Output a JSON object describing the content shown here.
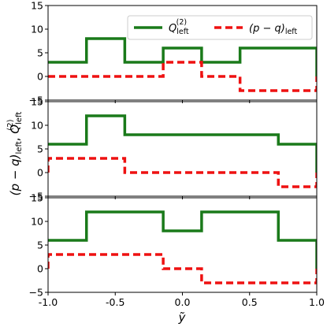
{
  "chart_data": {
    "type": "line",
    "xlabel": "ỹ",
    "ylabel_parts": [
      "(p − q)",
      "left",
      ", ",
      "Q",
      "left",
      "(2)"
    ],
    "xlim": [
      -1.0,
      1.0
    ],
    "xticks": [
      -1.0,
      -0.5,
      0.0,
      0.5,
      1.0
    ],
    "xtick_labels": [
      "-1.0",
      "-0.5",
      "0.0",
      "0.5",
      "1.0"
    ],
    "legend": {
      "placement": "top-right",
      "entries": [
        {
          "label_main": "Q",
          "label_sub": "left",
          "label_sup": "(2)",
          "color": "#1a7a1a",
          "style": "solid"
        },
        {
          "label_main": "(p − q)",
          "label_sub": "left",
          "label_sup": "",
          "color": "#ee1111",
          "style": "dashed"
        }
      ]
    },
    "panels": [
      {
        "ylim": [
          -5,
          15
        ],
        "yticks": [
          -5,
          0,
          5,
          10,
          15
        ],
        "ytick_labels": [
          "−5",
          "0",
          "5",
          "10",
          "15"
        ],
        "series": [
          {
            "color": "#1a7a1a",
            "style": "solid",
            "x": [
              -1.0,
              -0.714,
              -0.714,
              -0.429,
              -0.429,
              -0.143,
              -0.143,
              0.143,
              0.143,
              0.429,
              0.429,
              1.0,
              1.0
            ],
            "y": [
              3,
              3,
              8,
              8,
              3,
              3,
              6,
              6,
              3,
              3,
              6,
              6,
              0
            ]
          },
          {
            "color": "#ee1111",
            "style": "dashed",
            "x": [
              -1.0,
              -0.143,
              -0.143,
              0.143,
              0.143,
              0.429,
              0.429,
              1.0,
              1.0
            ],
            "y": [
              0,
              0,
              3,
              3,
              0,
              0,
              -3,
              -3,
              0
            ]
          }
        ]
      },
      {
        "ylim": [
          -5,
          15
        ],
        "yticks": [
          -5,
          0,
          5,
          10,
          15
        ],
        "ytick_labels": [
          "−5",
          "0",
          "5",
          "10",
          "15"
        ],
        "series": [
          {
            "color": "#1a7a1a",
            "style": "solid",
            "x": [
              -1.0,
              -0.714,
              -0.714,
              -0.429,
              -0.429,
              0.714,
              0.714,
              1.0,
              1.0
            ],
            "y": [
              6,
              6,
              12,
              12,
              8,
              8,
              6,
              6,
              0
            ]
          },
          {
            "color": "#ee1111",
            "style": "dashed",
            "x": [
              -1.0,
              -1.0,
              -0.429,
              -0.429,
              0.714,
              0.714,
              1.0,
              1.0
            ],
            "y": [
              0,
              3,
              3,
              0,
              0,
              -3,
              -3,
              0
            ]
          }
        ]
      },
      {
        "ylim": [
          -5,
          15
        ],
        "yticks": [
          -5,
          0,
          5,
          10,
          15
        ],
        "ytick_labels": [
          "−5",
          "0",
          "5",
          "10",
          "15"
        ],
        "series": [
          {
            "color": "#1a7a1a",
            "style": "solid",
            "x": [
              -1.0,
              -0.714,
              -0.714,
              -0.143,
              -0.143,
              0.143,
              0.143,
              0.714,
              0.714,
              1.0,
              1.0
            ],
            "y": [
              6,
              6,
              12,
              12,
              8,
              8,
              12,
              12,
              6,
              6,
              0
            ]
          },
          {
            "color": "#ee1111",
            "style": "dashed",
            "x": [
              -1.0,
              -1.0,
              -0.143,
              -0.143,
              0.143,
              0.143,
              1.0,
              1.0
            ],
            "y": [
              0,
              3,
              3,
              0,
              0,
              -3,
              -3,
              0
            ]
          }
        ]
      }
    ]
  }
}
